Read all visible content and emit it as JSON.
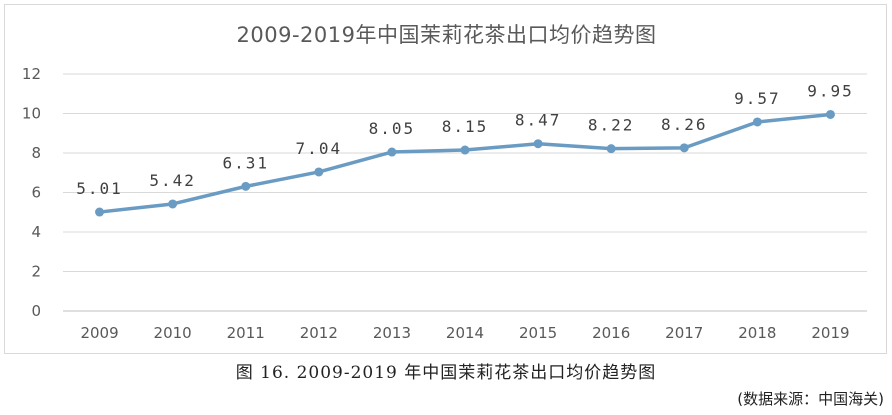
{
  "chart_data": {
    "type": "line",
    "title": "2009-2019年中国茉莉花茶出口均价趋势图",
    "categories": [
      "2009",
      "2010",
      "2011",
      "2012",
      "2013",
      "2014",
      "2015",
      "2016",
      "2017",
      "2018",
      "2019"
    ],
    "series": [
      {
        "values": [
          5.01,
          5.42,
          6.31,
          7.04,
          8.05,
          8.15,
          8.47,
          8.22,
          8.26,
          9.57,
          9.95
        ],
        "labels": [
          "5.01",
          "5.42",
          "6.31",
          "7.04",
          "8.05",
          "8.15",
          "8.47",
          "8.22",
          "8.26",
          "9.57",
          "9.95"
        ]
      }
    ],
    "ylim": [
      0,
      12
    ],
    "yticks": [
      "0",
      "2",
      "4",
      "6",
      "8",
      "10",
      "12"
    ],
    "grid": true,
    "line_color": "#6a9bc3",
    "xlabel": "",
    "ylabel": ""
  },
  "caption": "图 16. 2009-2019 年中国茉莉花茶出口均价趋势图",
  "source": "(数据来源：中国海关)"
}
